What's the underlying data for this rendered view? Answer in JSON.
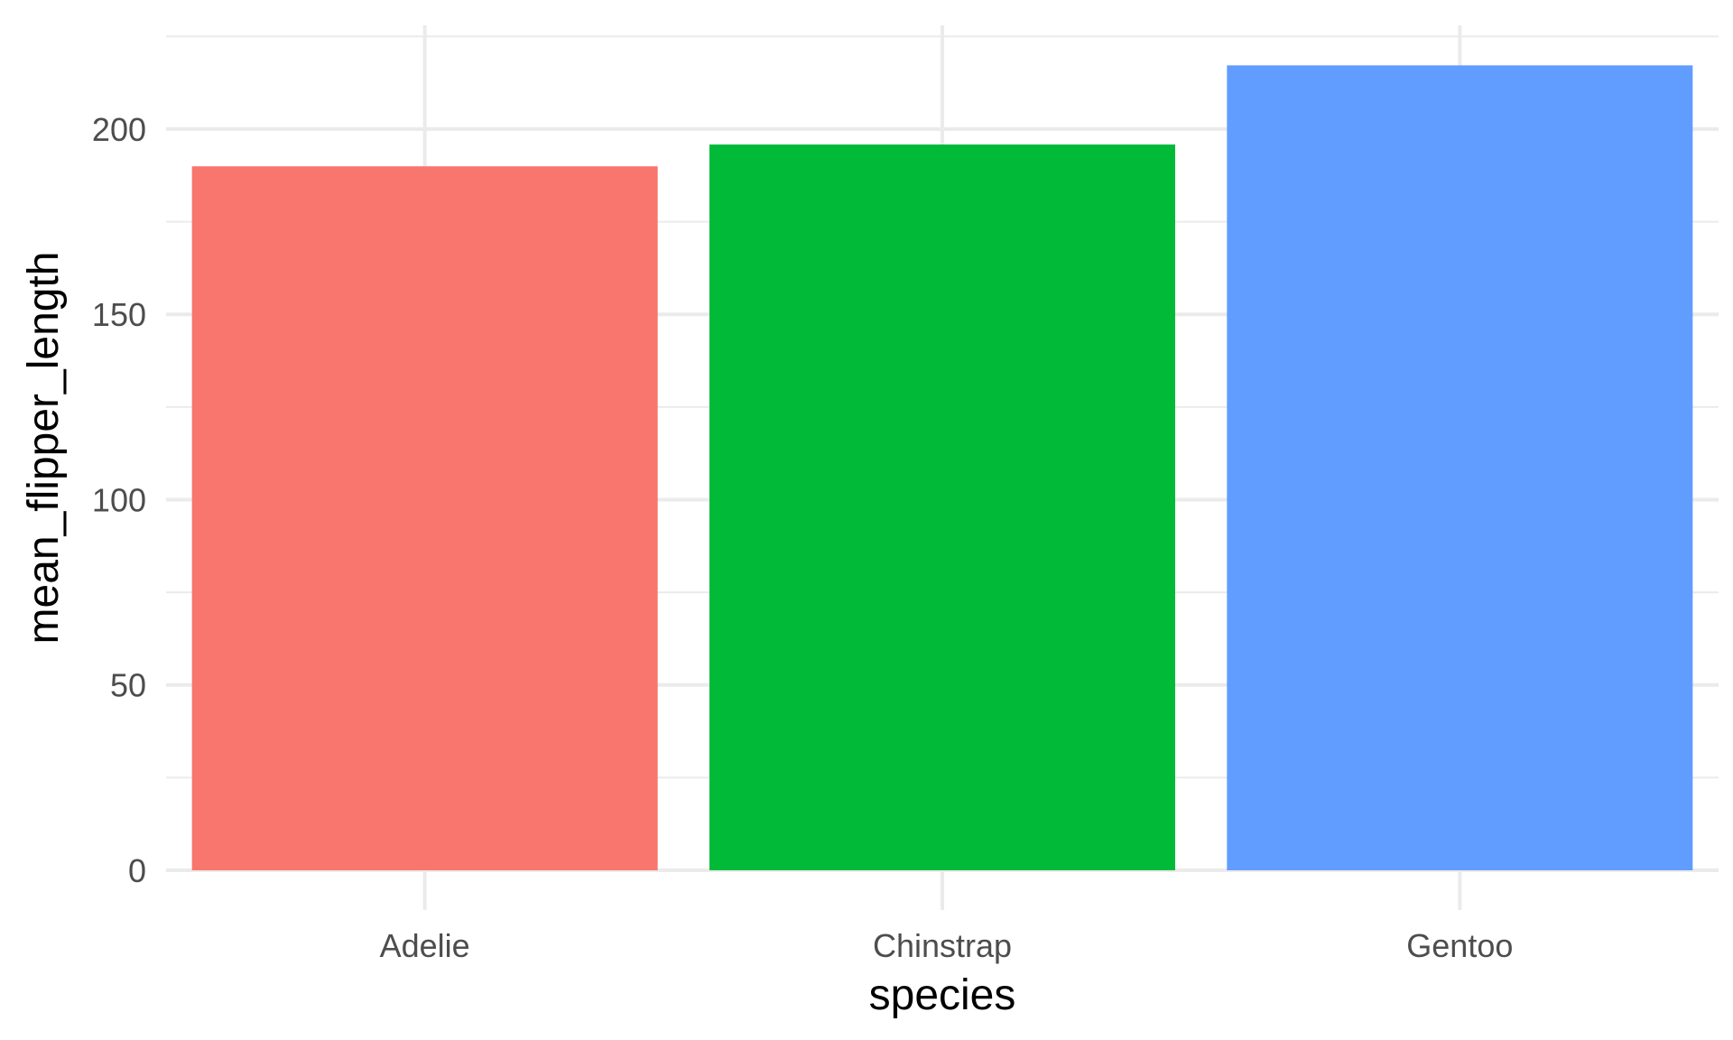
{
  "chart_data": {
    "type": "bar",
    "categories": [
      "Adelie",
      "Chinstrap",
      "Gentoo"
    ],
    "values": [
      189.95,
      195.82,
      217.19
    ],
    "colors": [
      "#F8766D",
      "#00BA38",
      "#619CFF"
    ],
    "xlabel": "species",
    "ylabel": "mean_flipper_length",
    "ylim": [
      0,
      228
    ],
    "yticks": [
      0,
      50,
      100,
      150,
      200
    ],
    "grid": true,
    "theme": {
      "background": "#ffffff",
      "grid_major": "#ebebeb",
      "grid_minor": "#ebebeb"
    }
  }
}
